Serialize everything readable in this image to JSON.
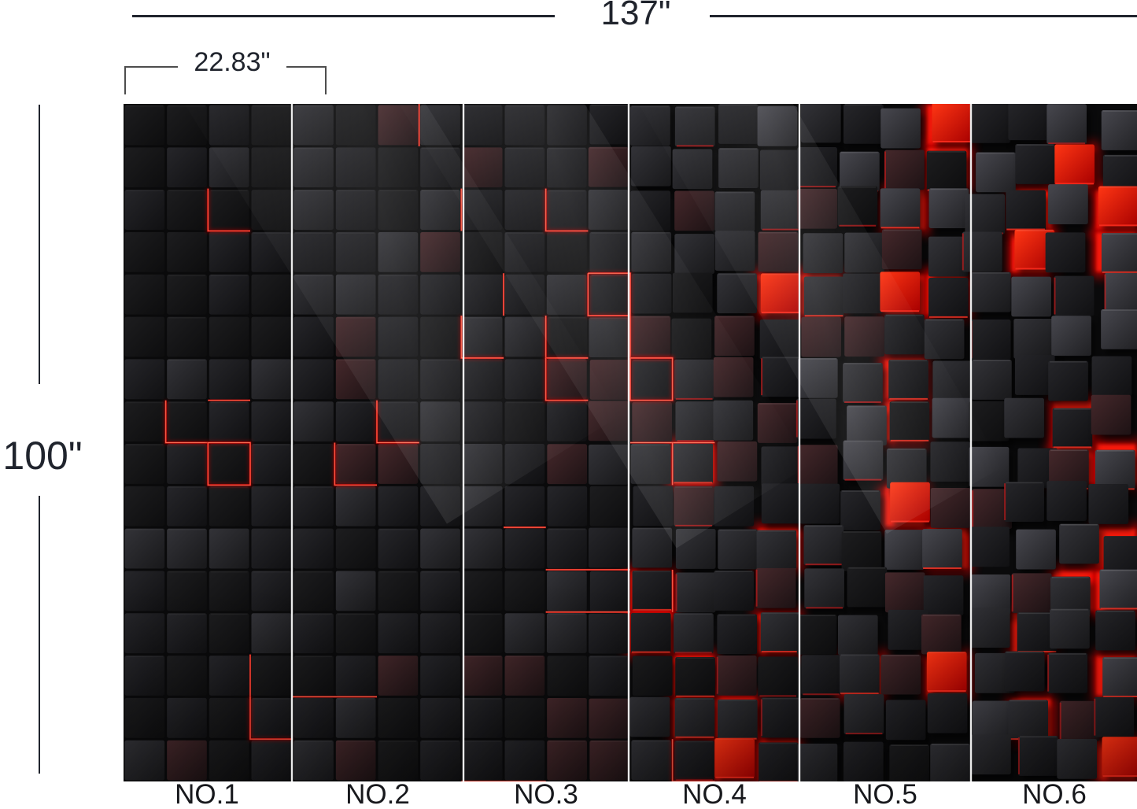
{
  "product_diagram": {
    "total_width_label": "137\"",
    "panel_width_label": "22.83\"",
    "height_label": "100\"",
    "panel_labels": [
      "NO.1",
      "NO.2",
      "NO.3",
      "NO.4",
      "NO.5",
      "NO.6"
    ],
    "panel_count": 6
  },
  "colors": {
    "annotation_text": "#20242d",
    "dimension_line": "#20242d",
    "bracket_line": "#4d4d4d",
    "mural_red_glow": "#e80000",
    "panel_divider": "#f5f5f5"
  },
  "mural": {
    "background": "#0a0a0b",
    "divider_color": "#f5f5f5",
    "glow_color": "#e80000",
    "glow_core": "#ff1a0a",
    "seam_color": "#e01212",
    "seam_core": "#ff7a5a",
    "face_dark": "#1d1d1f",
    "face_mid": "#26262a",
    "face_light": "#47474e",
    "face_red_tint": "#45282b",
    "cols": 24,
    "rows": 16,
    "dividers_rel_x": [
      214,
      432,
      642,
      859,
      1077
    ]
  }
}
